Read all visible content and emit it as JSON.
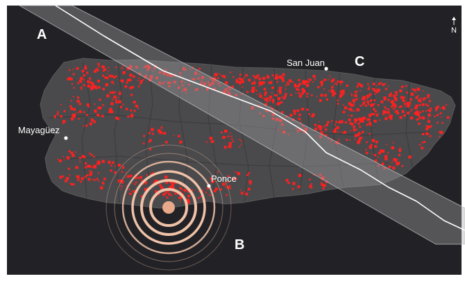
{
  "panel_labels": {
    "a": "A",
    "b": "B",
    "c": "C"
  },
  "cities": {
    "san_juan": "San Juan",
    "mayaguez": "Mayagüez",
    "ponce": "Ponce"
  },
  "north_arrow": {
    "label": "N",
    "icon": "north-arrow-icon"
  },
  "colors": {
    "background": "#222226",
    "island": "#4a4a4c",
    "island_edge": "#5a5a5c",
    "municipal_lines": "#3a3a3c",
    "outage_dots": "#ff2020",
    "storm_band": "#a8a8ac",
    "storm_track": "#ffffff",
    "epicenter_core": "#e7a98a",
    "epicenter_rings": "#f0c2a8"
  }
}
